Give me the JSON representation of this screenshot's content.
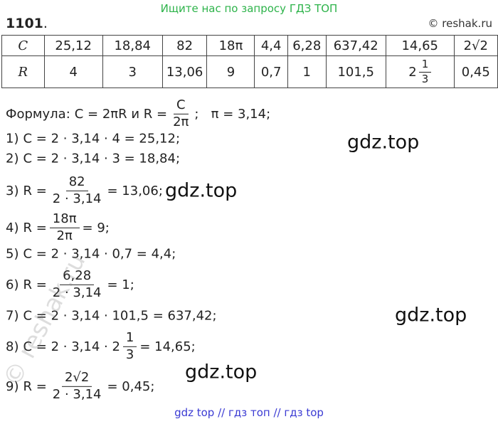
{
  "header": {
    "top_banner": "Ищите нас по запросу ГДЗ ТОП",
    "problem_number": "1101",
    "number_dot": ".",
    "copyright": "© reshak.ru"
  },
  "table": {
    "rows": [
      [
        "C",
        "25,12",
        "18,84",
        "82",
        "18π",
        "4,4",
        "6,28",
        "637,42",
        "14,65",
        "2√2"
      ],
      [
        "R",
        "4",
        "3",
        "13,06",
        "9",
        "0,7",
        "1",
        "101,5",
        {
          "whole": "2",
          "num": "1",
          "den": "3"
        },
        "0,45"
      ]
    ]
  },
  "formula": {
    "label": "Формула:",
    "lhs": "C = 2πR и R =",
    "num": "C",
    "den": "2π",
    "rhs": ";   π = 3,14;"
  },
  "steps": [
    {
      "label": "1)",
      "text": "C = 2 · 3,14 · 4 = 25,12;"
    },
    {
      "label": "2)",
      "text": "C = 2 · 3,14 · 3 = 18,84;"
    },
    {
      "label": "3)",
      "lhs": "R =",
      "num": "82",
      "den": "2 · 3,14",
      "rhs": "= 13,06;"
    },
    {
      "label": "4)",
      "lhs": "R =",
      "num": "18π",
      "den": "2π",
      "rhs": "= 9;"
    },
    {
      "label": "5)",
      "text": "C = 2 · 3,14 · 0,7 = 4,4;"
    },
    {
      "label": "6)",
      "lhs": "R =",
      "num": "6,28",
      "den": "2 · 3,14",
      "rhs": "= 1;"
    },
    {
      "label": "7)",
      "text": "C = 2 · 3,14 · 101,5 = 637,42;"
    },
    {
      "label": "8)",
      "lhs": "C = 2 · 3,14 · 2",
      "num": "1",
      "den": "3",
      "rhs": "= 14,65;"
    },
    {
      "label": "9)",
      "lhs": "R =",
      "num": "2√2",
      "den": "2 · 3,14",
      "rhs": "= 0,45;"
    }
  ],
  "watermarks": {
    "gdz": [
      "gdz.top",
      "gdz.top",
      "gdz.top",
      "gdz.top"
    ],
    "side": "© reshak.ru"
  },
  "footer": "gdz top  //  гдз топ  //  гдз top"
}
